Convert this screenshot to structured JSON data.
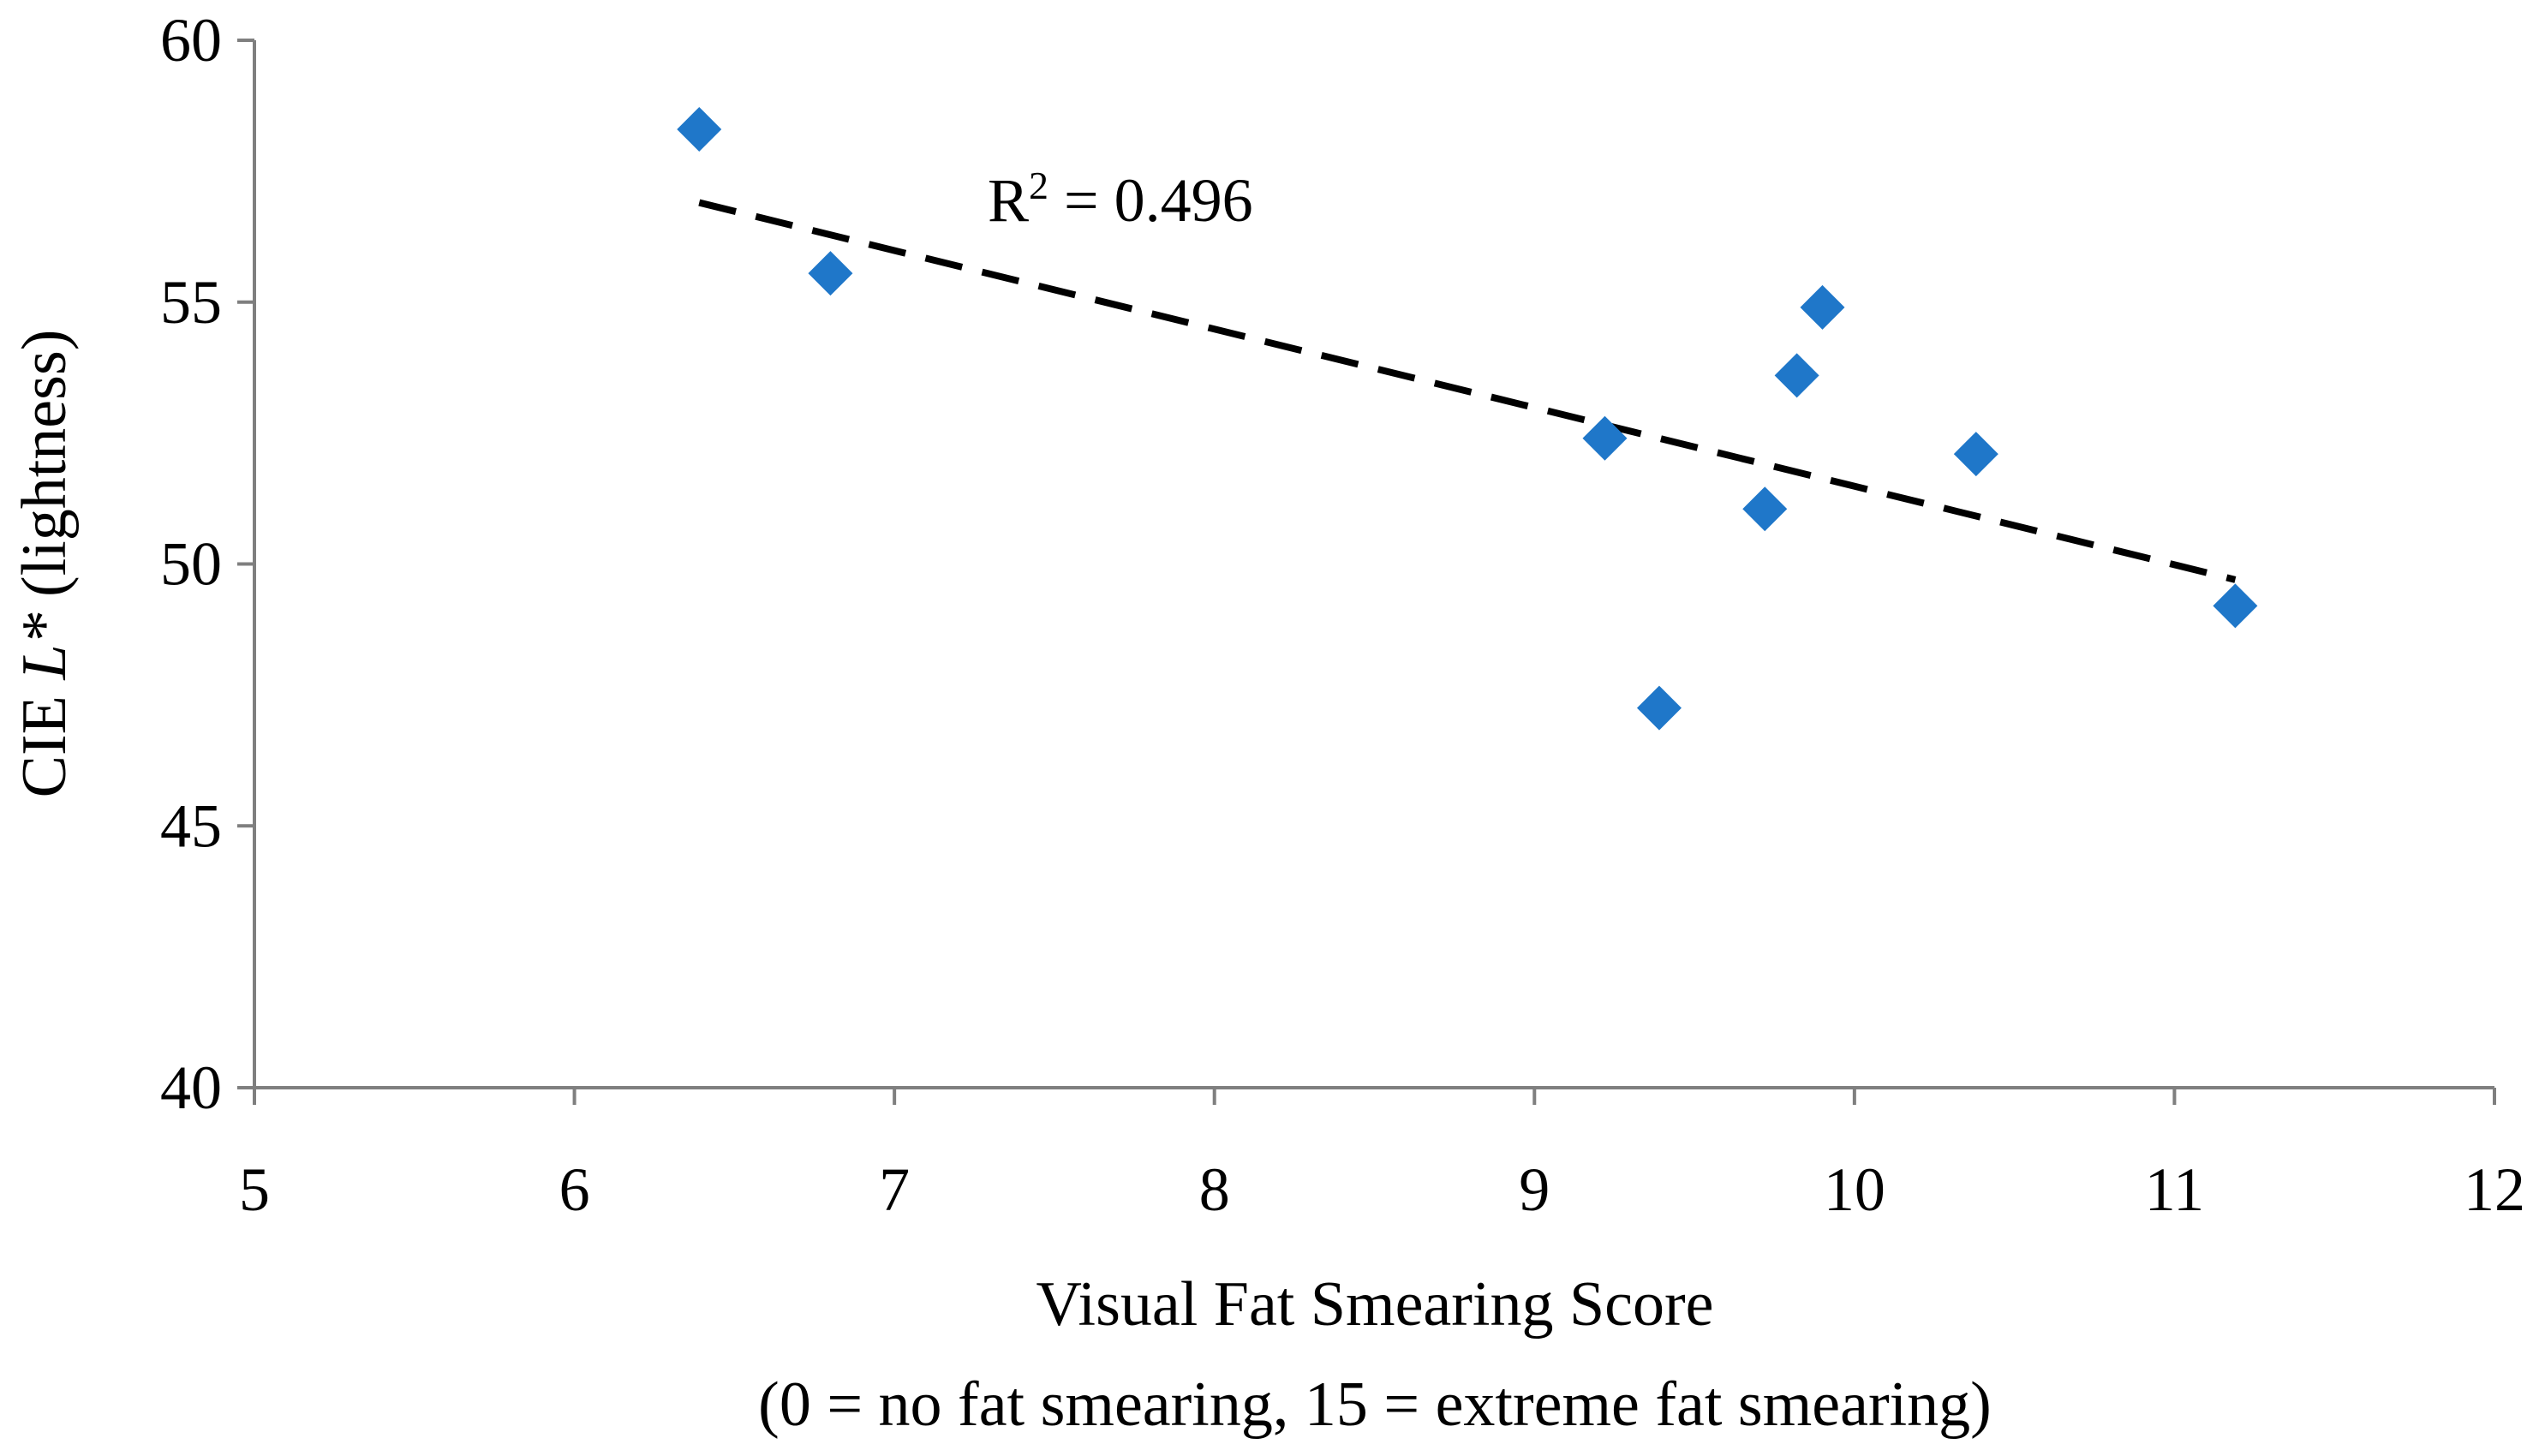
{
  "chart_data": {
    "type": "scatter",
    "xlabel": "Visual Fat Smearing Score",
    "xlabel_note": "(0 = no fat smearing, 15 = extreme fat smearing)",
    "ylabel_prefix": "CIE ",
    "ylabel_var": "L*",
    "ylabel_suffix": " (lightness)",
    "xlim": [
      5,
      12
    ],
    "ylim": [
      40,
      60
    ],
    "x_ticks": [
      5,
      6,
      7,
      8,
      9,
      10,
      11,
      12
    ],
    "y_ticks": [
      40,
      45,
      50,
      55,
      60
    ],
    "grid": false,
    "legend": "none",
    "points": [
      {
        "x": 6.39,
        "y": 58.3
      },
      {
        "x": 6.8,
        "y": 55.55
      },
      {
        "x": 9.22,
        "y": 52.4
      },
      {
        "x": 9.39,
        "y": 47.25
      },
      {
        "x": 9.72,
        "y": 51.05
      },
      {
        "x": 9.82,
        "y": 53.6
      },
      {
        "x": 9.9,
        "y": 54.9
      },
      {
        "x": 10.38,
        "y": 52.1
      },
      {
        "x": 11.19,
        "y": 49.2
      }
    ],
    "trendline": {
      "x": [
        6.39,
        11.19
      ],
      "y": [
        56.9,
        49.7
      ],
      "style": "dashed",
      "color": "#000000"
    },
    "annotation": {
      "base": "R",
      "sup": "2",
      "text": " = 0.496"
    },
    "marker_color": "#1f77c9",
    "marker_shape": "diamond"
  }
}
